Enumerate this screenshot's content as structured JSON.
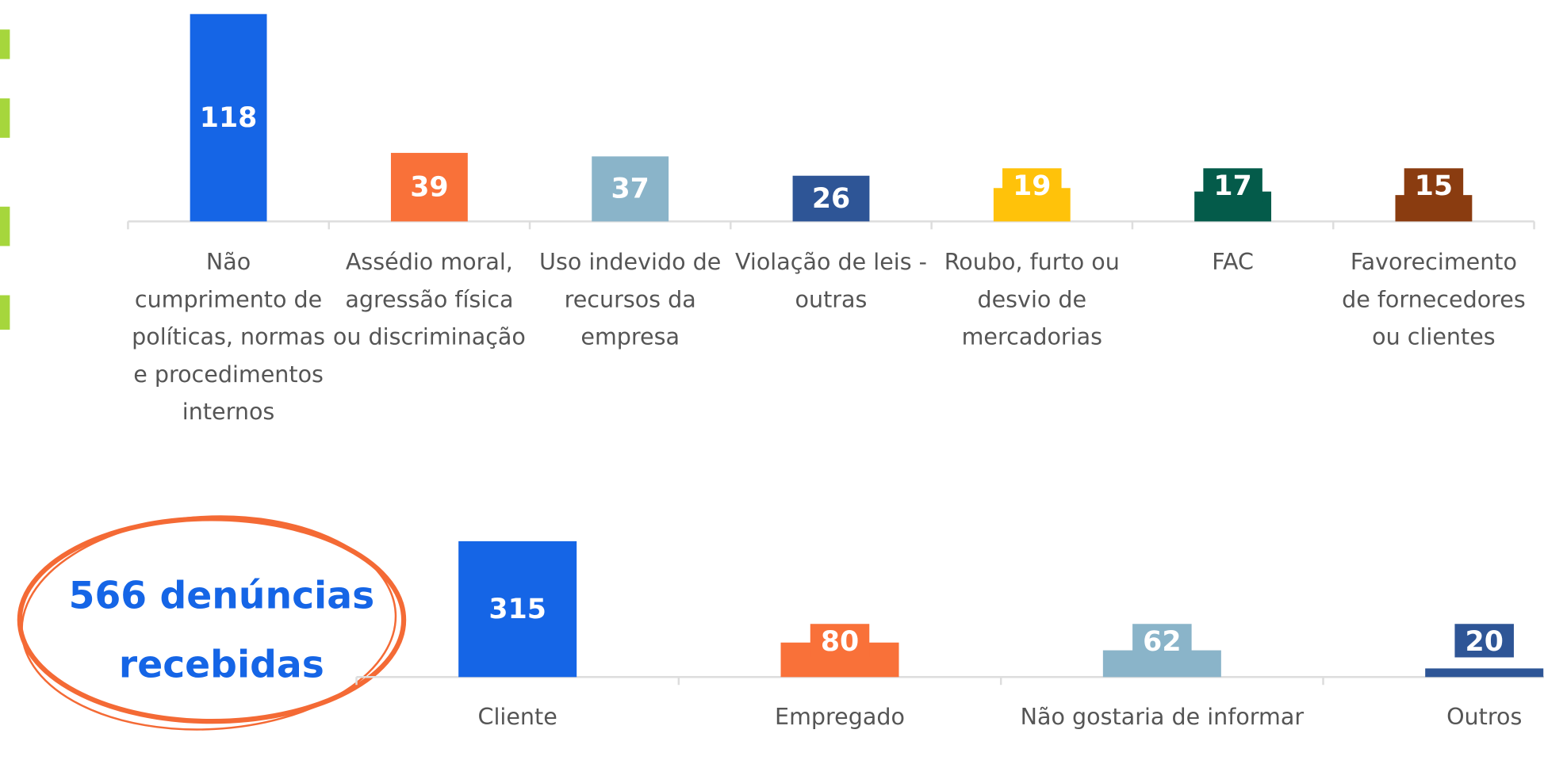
{
  "annotation": "566 denúncias recebidas",
  "chart_data": [
    {
      "type": "bar",
      "categories": [
        "Não cumprimento de políticas, normas e procedimentos internos",
        "Assédio moral, agressão física ou discriminação",
        "Uso indevido de recursos da empresa",
        "Violação de leis - outras",
        "Roubo, furto ou desvio de mercadorias",
        "FAC",
        "Favorecimento de fornecedores ou clientes"
      ],
      "values": [
        118,
        39,
        37,
        26,
        19,
        17,
        15
      ],
      "colors": [
        "#1565e6",
        "#f97139",
        "#8ab4c9",
        "#2e5596",
        "#ffc20a",
        "#045b4a",
        "#8a3c10"
      ],
      "ylim": [
        0,
        126
      ]
    },
    {
      "type": "bar",
      "categories": [
        "Cliente",
        "Empregado",
        "Não gostaria de informar",
        "Outros"
      ],
      "values": [
        315,
        80,
        62,
        20
      ],
      "colors": [
        "#1565e6",
        "#f97139",
        "#8ab4c9",
        "#2e5596"
      ],
      "ylim": [
        0,
        429
      ]
    }
  ]
}
